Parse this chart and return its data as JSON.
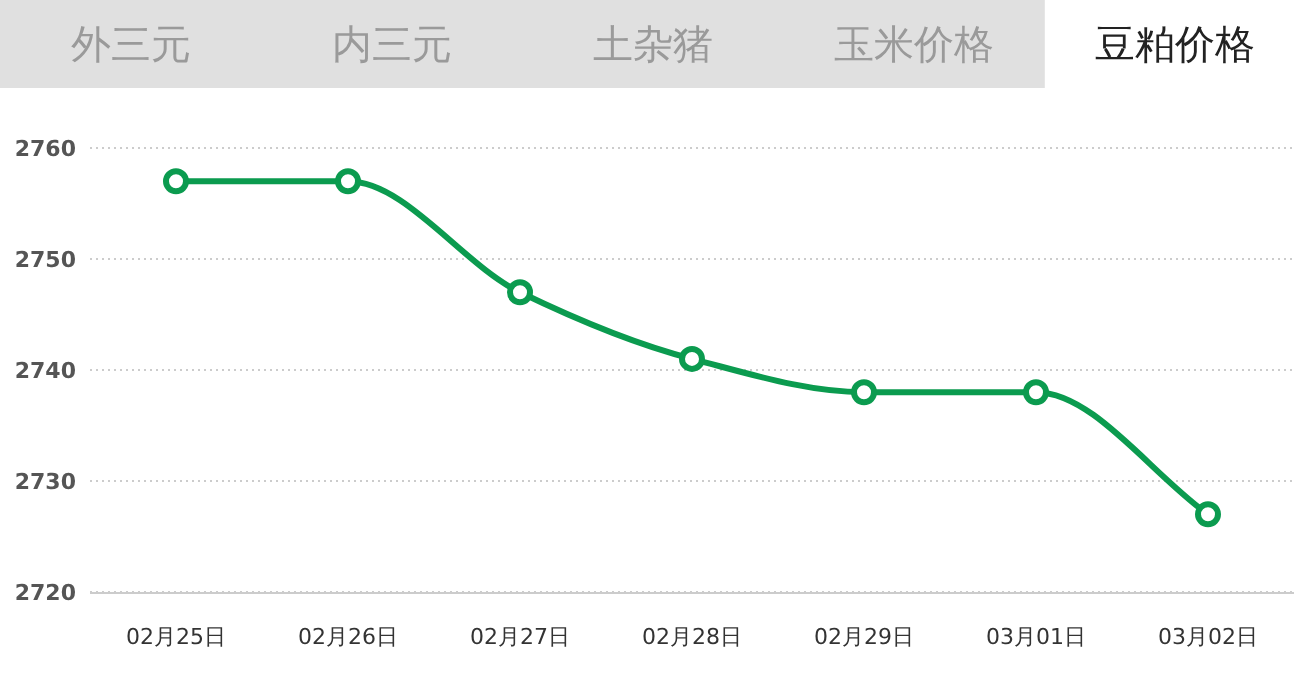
{
  "chart_data": {
    "type": "line",
    "title": "豆粕价格",
    "annotations": [
      "外三元",
      "内三元",
      "土杂猪",
      "玉米价格"
    ],
    "categories": [
      "02月25日",
      "02月26日",
      "02月27日",
      "02月28日",
      "02月29日",
      "03月01日",
      "03月02日"
    ],
    "series": [
      {
        "color": "#0b9b4f",
        "values": [
          2757,
          2757,
          2747,
          2741,
          2738,
          2738,
          2727
        ]
      }
    ],
    "ylim": [
      2720,
      2760
    ],
    "yticks": [
      2720,
      2730,
      2740,
      2750,
      2760
    ],
    "grid": "y",
    "marker": "circle",
    "line_style": "solid"
  }
}
